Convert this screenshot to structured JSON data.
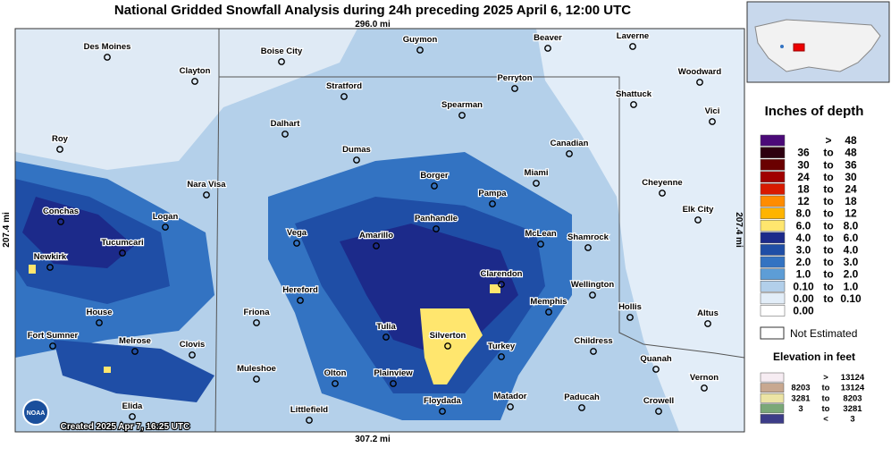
{
  "title": "National Gridded Snowfall Analysis during 24h preceding 2025 April 6, 12:00 UTC",
  "distances": {
    "top": "296.0 mi",
    "bottom": "307.2 mi",
    "left": "207.4 mi",
    "right": "207.4 mi"
  },
  "created": "Created 2025 Apr 7, 16:25 UTC",
  "logo": "NOAA",
  "cities": [
    "Des Moines",
    "Clayton",
    "Guymon",
    "Boise City",
    "Beaver",
    "Laverne",
    "Woodward",
    "Stratford",
    "Perryton",
    "Shattuck",
    "Spearman",
    "Vici",
    "Dalhart",
    "Roy",
    "Canadian",
    "Dumas",
    "Miami",
    "Borger",
    "Cheyenne",
    "Nara Visa",
    "Pampa",
    "Conchas",
    "Logan",
    "Elk City",
    "Panhandle",
    "Tucumcari",
    "Vega",
    "Amarillo",
    "McLean",
    "Shamrock",
    "Newkirk",
    "Clarendon",
    "Hereford",
    "Wellington",
    "Memphis",
    "Hollis",
    "House",
    "Friona",
    "Altus",
    "Tulia",
    "Silverton",
    "Fort Sumner",
    "Melrose",
    "Clovis",
    "Childress",
    "Turkey",
    "Quanah",
    "Muleshoe",
    "Olton",
    "Plainview",
    "Vernon",
    "Floydada",
    "Matador",
    "Paducah",
    "Crowell",
    "Elida",
    "Littlefield"
  ],
  "legend": {
    "title": "Inches of depth",
    "rows": [
      [
        ">",
        "48"
      ],
      [
        "36",
        "to",
        "48"
      ],
      [
        "30",
        "to",
        "36"
      ],
      [
        "24",
        "to",
        "30"
      ],
      [
        "18",
        "to",
        "24"
      ],
      [
        "12",
        "to",
        "18"
      ],
      [
        "8.0",
        "to",
        "12"
      ],
      [
        "6.0",
        "to",
        "8.0"
      ],
      [
        "4.0",
        "to",
        "6.0"
      ],
      [
        "3.0",
        "to",
        "4.0"
      ],
      [
        "2.0",
        "to",
        "3.0"
      ],
      [
        "1.0",
        "to",
        "2.0"
      ],
      [
        "0.10",
        "to",
        "1.0"
      ],
      [
        "0.00",
        "to",
        "0.10"
      ],
      [
        "0.00"
      ]
    ],
    "colors": [
      "#4b0a78",
      "#2e0010",
      "#6a0000",
      "#a00000",
      "#d81a00",
      "#ff8c00",
      "#ffb400",
      "#ffe66e",
      "#1c2a8a",
      "#1f4ea6",
      "#3373c2",
      "#5d9dd6",
      "#b2cfea",
      "#e2edf8",
      "#ffffff"
    ],
    "not_estimated": "Not Estimated"
  },
  "elevation": {
    "title": "Elevation in feet",
    "rows": [
      [
        ">",
        "13124"
      ],
      [
        "8203",
        "to",
        "13124"
      ],
      [
        "3281",
        "to",
        "8203"
      ],
      [
        "3",
        "to",
        "3281"
      ],
      [
        "<",
        "3"
      ]
    ],
    "colors": [
      "#f6ecf2",
      "#c8a890",
      "#ece4a4",
      "#7aa878",
      "#3c3c88"
    ]
  }
}
